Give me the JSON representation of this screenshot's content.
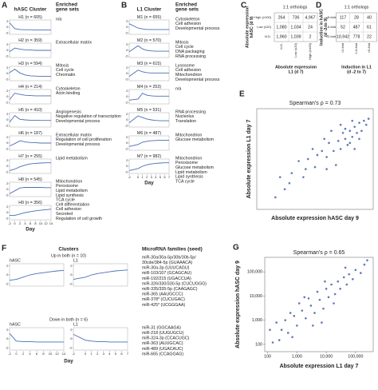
{
  "panel_a": {
    "label": "A",
    "header_cluster": "hASC Cluster",
    "header_sets": [
      "Enriched",
      "gene sets"
    ],
    "days": [
      -2,
      0,
      2,
      4,
      6,
      8,
      10,
      12,
      14
    ],
    "ylim": [
      -2.5,
      2.5
    ],
    "yticks": [
      -2,
      0,
      2
    ],
    "x_title": "Day",
    "clusters": [
      {
        "name": "H1 (n = 605)",
        "values": [
          1.5,
          -0.5,
          -0.8,
          -0.9,
          -0.9,
          -1,
          -1,
          -1,
          -1
        ],
        "sets": [
          "n/a"
        ]
      },
      {
        "name": "H2 (n = 359)",
        "values": [
          -0.5,
          0.8,
          0.4,
          0.2,
          0.1,
          0,
          0,
          0,
          0
        ],
        "sets": [
          "Extracellular matrix"
        ]
      },
      {
        "name": "H3 (n = 594)",
        "values": [
          0.3,
          1.5,
          0.2,
          -0.5,
          -0.8,
          -0.9,
          -1,
          -1,
          -1
        ],
        "sets": [
          "Mitosis",
          "Cell cycle",
          "Chromatin"
        ]
      },
      {
        "name": "H4 (n = 214)",
        "values": [
          -1,
          1.2,
          0.8,
          0.5,
          0.4,
          0.3,
          0.3,
          0.3,
          0.3
        ],
        "sets": [
          "Cytoskeleton",
          "Actin binding"
        ]
      },
      {
        "name": "H5 (n = 410)",
        "values": [
          -0.8,
          1.5,
          0.2,
          0,
          -0.1,
          -0.1,
          -0.2,
          -0.2,
          -0.2
        ],
        "sets": [
          "Angiogenesis",
          "Negative regulation of transcription",
          "Developmental process"
        ]
      },
      {
        "name": "H6 (n = 187)",
        "values": [
          -1,
          -0.2,
          0.8,
          0.4,
          0.2,
          0.1,
          0,
          0,
          0
        ],
        "sets": [
          "Extracellular matrix",
          "Regulation of cell proliferation",
          "Developmental process"
        ]
      },
      {
        "name": "H7 (n = 255)",
        "values": [
          -1.5,
          -1,
          -0.2,
          0.4,
          0.8,
          1,
          1.1,
          1.2,
          1.2
        ],
        "sets": [
          "Lipid metabolism"
        ]
      },
      {
        "name": "H8 (n = 545)",
        "values": [
          -1.5,
          -0.5,
          0.5,
          0.7,
          0.7,
          0.7,
          0.7,
          0.6,
          0.6
        ],
        "sets": [
          "Mitochondrion",
          "Peroxisome",
          "Lipid metabolism",
          "Lipid synthesis",
          "TCA cycle"
        ]
      },
      {
        "name": "H9 (n = 356)",
        "values": [
          -1,
          -1,
          -0.5,
          0,
          0.3,
          0.6,
          0.8,
          1,
          1.2
        ],
        "sets": [
          "Cell differentiation",
          "Cell adhesion",
          "Secreted",
          "Regulation of cell growth"
        ]
      }
    ]
  },
  "panel_b": {
    "label": "B",
    "header_cluster": "L1 Cluster",
    "header_sets": [
      "Enriched",
      "gene sets"
    ],
    "days": [
      -2,
      0,
      1,
      2,
      3,
      4,
      5,
      6,
      7
    ],
    "ylim": [
      -2.5,
      2.5
    ],
    "yticks": [
      -2,
      0,
      2
    ],
    "x_title": "Day",
    "clusters": [
      {
        "name": "M1 (n = 655)",
        "values": [
          1.2,
          -0.3,
          -0.6,
          -0.8,
          -0.8,
          -0.8,
          -0.8,
          -0.8,
          -0.8
        ],
        "sets": [
          "Cytoskeleton",
          "Cell adhesion",
          "Developmental process"
        ]
      },
      {
        "name": "M2 (n = 570)",
        "values": [
          -0.5,
          1.6,
          0.5,
          0,
          -0.2,
          -0.3,
          -0.3,
          -0.3,
          -0.3
        ],
        "sets": [
          "Mitosis",
          "Cell cycle",
          "DNA packaging",
          "RNA processing"
        ]
      },
      {
        "name": "M3 (n = 615)",
        "values": [
          -1,
          1.2,
          0.6,
          0.3,
          0.2,
          0.2,
          0.2,
          0.2,
          0.2
        ],
        "sets": [
          "Lysosome",
          "Cell adhesion",
          "Mitochondrion",
          "Developmental process"
        ]
      },
      {
        "name": "M4 (n = 253)",
        "values": [
          -1.2,
          -0.8,
          1.2,
          0.5,
          0.3,
          0.2,
          0.2,
          0.2,
          0.2
        ],
        "sets": [
          "n/a"
        ]
      },
      {
        "name": "M5 (n = 531)",
        "values": [
          -1,
          1.4,
          0.8,
          0.3,
          0,
          -0.2,
          -0.3,
          -0.3,
          -0.3
        ],
        "sets": [
          "RNA processing",
          "Nucleolus",
          "Translation"
        ]
      },
      {
        "name": "M6 (n = 487)",
        "values": [
          -1.2,
          -0.5,
          0.3,
          0.6,
          0.8,
          0.9,
          1,
          1,
          1
        ],
        "sets": [
          "Mitochondrion",
          "Glucose metabolism"
        ]
      },
      {
        "name": "M7 (n = 982)",
        "values": [
          -1.5,
          -0.8,
          0,
          0.5,
          0.8,
          1,
          1.1,
          1.2,
          1.2
        ],
        "sets": [
          "Mitochondrion",
          "Peroxisome",
          "Glucose metabolism",
          "Lipid metabolism",
          "Lipid synthesis",
          "TCA cycle"
        ]
      }
    ]
  },
  "panel_c": {
    "label": "C",
    "title": "1:1 orthologs",
    "row_title": [
      "Absolute expression",
      "hASC (d 9)"
    ],
    "row_labels": [
      "High (≥100)",
      "Low (≤20)",
      "N.D."
    ],
    "col_labels": [
      "N.D.",
      "Low (≤20)",
      "High (≥100)"
    ],
    "col_title": [
      "Absolute expression",
      "L1 (d 7)"
    ],
    "rows": [
      [
        "264",
        "736",
        "4,967"
      ],
      [
        "1,080",
        "1,034",
        "24"
      ],
      [
        "1,960",
        "1,039",
        "2"
      ]
    ]
  },
  "panel_d": {
    "label": "D",
    "title": "1:1 orthologs",
    "row_title": [
      "Induction in hASC",
      "(d -2 to 9)"
    ],
    "row_labels": [
      ">5-fold",
      "2-5-fold",
      "<2-fold"
    ],
    "col_labels": [
      "<2-fold",
      "2-5-fold",
      ">5-fold"
    ],
    "col_title": [
      "Induction in L1",
      "(d -2 to 7)"
    ],
    "rows": [
      [
        "117",
        "28",
        "40"
      ],
      [
        "52",
        "487",
        "61"
      ],
      [
        "10,942",
        "778",
        "22"
      ]
    ]
  },
  "panel_e": {
    "label": "E",
    "title": "Spearman's ρ = 0.73",
    "x_title": "Absolute expression hASC day 9",
    "y_title": "Absolute expression L1 day 7",
    "xlim": [
      0,
      5
    ],
    "ylim": [
      0,
      5
    ],
    "color": "#2b4c9a",
    "x": [
      1.2,
      1.5,
      2.0,
      2.2,
      2.5,
      2.8,
      3.0,
      3.1,
      3.3,
      3.5,
      3.6,
      3.7,
      3.8,
      3.9,
      4.0,
      4.1,
      4.2,
      4.3,
      4.4,
      4.5,
      4.6,
      4.7,
      4.2,
      3.4,
      2.9,
      2.4,
      1.8,
      1.0,
      0.8,
      3.2,
      3.6,
      4.0,
      4.4,
      3.0,
      2.6,
      3.8,
      4.1,
      4.8,
      1.4,
      2.1
    ],
    "y": [
      1.0,
      1.8,
      1.6,
      2.5,
      2.1,
      2.9,
      2.6,
      3.3,
      2.9,
      3.4,
      3.0,
      3.8,
      3.5,
      3.2,
      3.9,
      3.6,
      4.1,
      3.8,
      4.3,
      3.9,
      4.4,
      4.2,
      3.0,
      2.2,
      3.5,
      3.0,
      2.4,
      1.6,
      0.6,
      3.9,
      4.2,
      3.3,
      3.5,
      2.0,
      2.7,
      4.0,
      4.4,
      4.5,
      1.3,
      2.0
    ]
  },
  "panel_f": {
    "label": "F",
    "header_clusters": "Clusters",
    "header_mirna": "MicroRNA families (seed)",
    "up_title": "Up in both (n = 10)",
    "down_title": "Down in both (n = 6)",
    "left_name": "hASC",
    "right_name": "L1",
    "x_title": "Day",
    "hasc_days": [
      -2,
      0,
      2,
      4,
      6,
      8,
      10,
      12,
      14
    ],
    "l1_days": [
      -2,
      0,
      1,
      2,
      3,
      4,
      5,
      6,
      7
    ],
    "ylim": [
      -2.5,
      2.5
    ],
    "yticks": [
      -2,
      0,
      2
    ],
    "up_hasc": {
      "values": [
        -1.2,
        -1,
        -0.5,
        0,
        0.3,
        0.5,
        0.7,
        0.9,
        1
      ]
    },
    "up_l1": {
      "values": [
        -1,
        -0.5,
        0,
        0.3,
        0.5,
        0.7,
        0.9,
        1,
        1.1
      ]
    },
    "down_hasc": {
      "values": [
        1.2,
        -0.5,
        -0.6,
        -0.6,
        -0.7,
        -0.7,
        -0.7,
        -0.7,
        -0.7
      ]
    },
    "down_l1": {
      "values": [
        1,
        -0.3,
        -0.5,
        -0.6,
        -0.6,
        -0.7,
        -0.7,
        -0.7,
        -0.7
      ]
    },
    "mirna_up": [
      "miR-30a/30a-5p/30b/30b-5p/",
      "30cde/384-5p (GUAAACA)",
      "miR-30a-3p (UUUCAGU)",
      "miR-103/107 (GCAGCAU)",
      "miR-192/215 (UGACCUA)",
      "miR-326/330/330-5p (CUCUGGG)",
      "miR-335/335-5p (CAAGAGC)",
      "miR-365 (AAUGCCC)",
      "miR-378* (CUCUGAC)",
      "miR-425* (UCGGGAA)"
    ],
    "mirna_down": [
      "miR-31 (GGCAAGA)",
      "miR-218 (UUGUGCU)",
      "miR-324-3p (CCACUGC)",
      "miR-363 (AUUGCAC)",
      "miR-489 (UGACAUC)",
      "miR-665 (CCAGGAG)"
    ]
  },
  "panel_g": {
    "label": "G",
    "title": "Spearman's ρ = 0.65",
    "x_title": "Absolute expression L1 day 7",
    "y_title": "Absolute expression hASC day 9",
    "log": true,
    "color": "#2b4c9a",
    "xlim": [
      80,
      400000
    ],
    "ylim": [
      50,
      400000
    ],
    "xticks": [
      100,
      {
        "value": 1000,
        "label": "1,000"
      },
      {
        "value": 10000,
        "label": "10,000"
      },
      {
        "value": 100000,
        "label": "100,000"
      }
    ],
    "yticks": [
      100,
      {
        "value": 1000,
        "label": "1,000"
      },
      {
        "value": 10000,
        "label": "10,000"
      },
      {
        "value": 100000,
        "label": "100,000"
      }
    ],
    "x": [
      150,
      200,
      300,
      500,
      600,
      800,
      1000,
      1200,
      1500,
      2000,
      2500,
      3000,
      4000,
      5000,
      6000,
      8000,
      10000,
      12000,
      15000,
      20000,
      25000,
      30000,
      40000,
      50000,
      60000,
      80000,
      100000,
      150000,
      200000,
      700,
      400,
      3500,
      9000,
      1800,
      7000,
      120,
      250,
      45000,
      18000,
      250000
    ],
    "y": [
      120,
      800,
      400,
      300,
      2000,
      1500,
      600,
      5000,
      2500,
      1200,
      8000,
      4000,
      2000,
      15000,
      7000,
      3000,
      20000,
      9000,
      30000,
      12000,
      40000,
      20000,
      60000,
      30000,
      80000,
      50000,
      120000,
      90000,
      200000,
      200,
      1000,
      600,
      40000,
      9000,
      800,
      400,
      150,
      150000,
      5000,
      300000
    ]
  }
}
